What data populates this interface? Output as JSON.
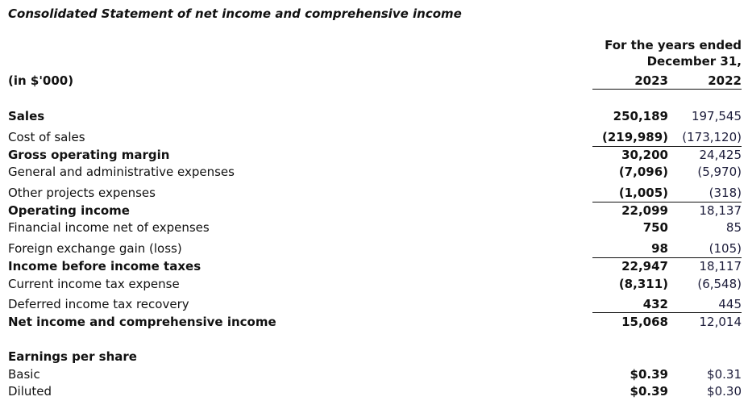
{
  "title": "Consolidated Statement of net income and comprehensive income",
  "units": "(in $'000)",
  "header": {
    "line1": "For the years ended",
    "line2": "December 31,",
    "year1": "2023",
    "year2": "2022"
  },
  "rows": [
    {
      "label": "Sales",
      "v2023": "250,189",
      "v2022": "197,545",
      "bold": true
    },
    {
      "label": "Cost of sales",
      "v2023": "(219,989)",
      "v2022": "(173,120)"
    },
    {
      "label": "Gross operating margin",
      "v2023": "30,200",
      "v2022": "24,425",
      "bold": true
    },
    {
      "label": "General and administrative expenses",
      "v2023": "(7,096)",
      "v2022": "(5,970)"
    },
    {
      "label": "Other projects expenses",
      "v2023": "(1,005)",
      "v2022": "(318)"
    },
    {
      "label": "Operating income",
      "v2023": "22,099",
      "v2022": "18,137",
      "bold": true
    },
    {
      "label": "Financial income net of expenses",
      "v2023": "750",
      "v2022": "85"
    },
    {
      "label": "Foreign exchange gain (loss)",
      "v2023": "98",
      "v2022": "(105)"
    },
    {
      "label": "Income before income taxes",
      "v2023": "22,947",
      "v2022": "18,117",
      "bold": true
    },
    {
      "label": "Current income tax expense",
      "v2023": "(8,311)",
      "v2022": "(6,548)"
    },
    {
      "label": "Deferred income tax recovery",
      "v2023": "432",
      "v2022": "445"
    },
    {
      "label": "Net income and comprehensive income",
      "v2023": "15,068",
      "v2022": "12,014",
      "bold": true
    }
  ],
  "eps": {
    "heading": "Earnings per share",
    "rows": [
      {
        "label": "Basic",
        "v2023": "$0.39",
        "v2022": "$0.31"
      },
      {
        "label": "Diluted",
        "v2023": "$0.39",
        "v2022": "$0.30"
      }
    ]
  }
}
